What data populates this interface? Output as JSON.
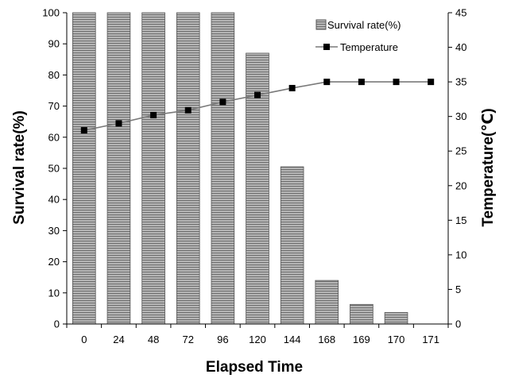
{
  "chart_data": {
    "type": "bar",
    "categories": [
      "0",
      "24",
      "48",
      "72",
      "96",
      "120",
      "144",
      "168",
      "169",
      "170",
      "171"
    ],
    "series": [
      {
        "name": "Survival rate(%)",
        "type": "bar",
        "axis": "left",
        "values": [
          100,
          100,
          100,
          100,
          100,
          87,
          50.5,
          14,
          6.3,
          3.7,
          0
        ]
      },
      {
        "name": "Temperature",
        "type": "line",
        "axis": "right",
        "values": [
          28,
          29,
          30.2,
          30.9,
          32.1,
          33.1,
          34.1,
          35,
          35,
          35,
          35
        ]
      }
    ],
    "xlabel": "Elapsed Time",
    "ylabel": "Survival rate(%)",
    "y2label": "Temperature(℃)",
    "ylim": [
      0,
      100
    ],
    "y2lim": [
      0,
      45
    ],
    "yticks": [
      0,
      10,
      20,
      30,
      40,
      50,
      60,
      70,
      80,
      90,
      100
    ],
    "y2ticks": [
      0,
      5,
      10,
      15,
      20,
      25,
      30,
      35,
      40,
      45
    ],
    "legend_position": "top-right",
    "grid": false,
    "colors": {
      "bar_fill": "#bdbdbd",
      "bar_stripe": "#6e6e6e",
      "line": "#7a7a7a",
      "marker": "#000000"
    }
  }
}
